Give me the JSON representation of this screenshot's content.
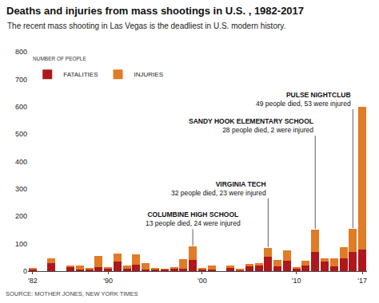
{
  "chart_data": {
    "type": "bar",
    "stacked": true,
    "title": "Deaths and injuries from mass shootings in U.S. , 1982-2017",
    "subtitle": "The recent mass shooting in Las Vegas is the deadliest in U.S. modern history.",
    "y_label": "NUMBER OF PEOPLE",
    "source": "SOURCE: MOTHER JONES, NEW YORK TIMES",
    "categories": [
      "'82",
      null,
      null,
      null,
      null,
      null,
      null,
      null,
      "'90",
      null,
      null,
      null,
      null,
      null,
      null,
      null,
      null,
      null,
      "'00",
      null,
      null,
      null,
      null,
      null,
      null,
      null,
      null,
      null,
      "'10",
      null,
      null,
      null,
      null,
      null,
      null,
      "'17"
    ],
    "series": [
      {
        "name": "FATALITIES",
        "color": "#b0161b",
        "values": [
          8,
          0,
          28,
          0,
          15,
          6,
          7,
          15,
          10,
          35,
          9,
          23,
          5,
          6,
          6,
          9,
          10,
          42,
          7,
          5,
          0,
          14,
          5,
          17,
          21,
          52,
          18,
          39,
          9,
          19,
          71,
          35,
          18,
          46,
          71,
          80
        ]
      },
      {
        "name": "INJURIES",
        "color": "#e07b26",
        "values": [
          3,
          0,
          20,
          0,
          6,
          14,
          4,
          41,
          4,
          28,
          12,
          37,
          23,
          3,
          1,
          6,
          35,
          47,
          2,
          15,
          0,
          5,
          4,
          9,
          8,
          33,
          22,
          38,
          3,
          19,
          80,
          13,
          30,
          42,
          83,
          520
        ]
      }
    ],
    "ylim": [
      0,
      800
    ],
    "yticks": [
      0,
      100,
      200,
      300,
      400,
      500,
      600,
      700,
      800
    ],
    "grid": false,
    "legend": "upper left",
    "annotations": [
      {
        "at": 17,
        "title": "COLUMBINE HIGH SCHOOL",
        "text": "13 people died, 24 were injured"
      },
      {
        "at": 25,
        "title": "VIRGINIA TECH",
        "text": "32 people died, 23 were injured"
      },
      {
        "at": 30,
        "title": "SANDY HOOK ELEMENTARY SCHOOL",
        "text": "28 people died, 2 were injured"
      },
      {
        "at": 34,
        "title": "PULSE NIGHTCLUB",
        "text": "49 people died, 53 were injured"
      }
    ]
  }
}
